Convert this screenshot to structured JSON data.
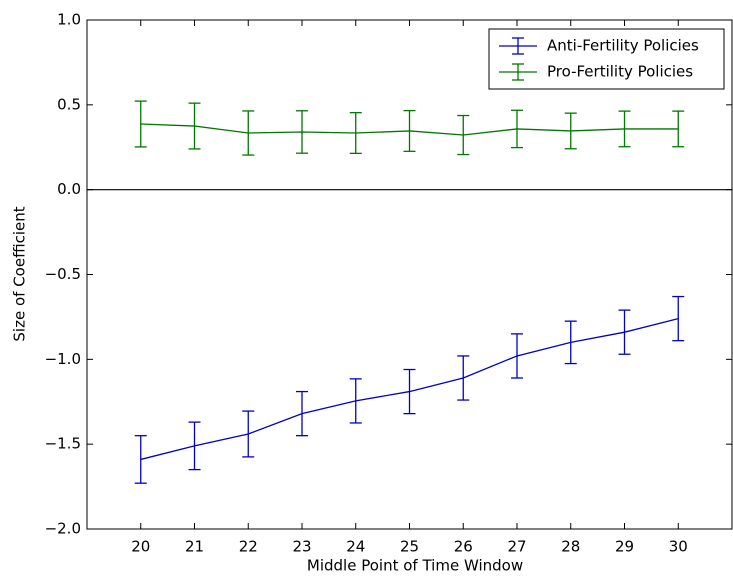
{
  "chart_data": {
    "type": "errorbar_line",
    "x_label": "Middle Point of Time Window",
    "y_label": "Size of Coefficient",
    "x": [
      20,
      21,
      22,
      23,
      24,
      25,
      26,
      27,
      28,
      29,
      30
    ],
    "series": [
      {
        "name": "Anti-Fertility Policies",
        "color": "#0000cc",
        "values": [
          -1.59,
          -1.51,
          -1.44,
          -1.32,
          -1.245,
          -1.19,
          -1.11,
          -0.98,
          -0.9,
          -0.84,
          -0.76
        ],
        "errors": [
          0.14,
          0.14,
          0.135,
          0.13,
          0.13,
          0.13,
          0.13,
          0.13,
          0.125,
          0.13,
          0.13
        ]
      },
      {
        "name": "Pro-Fertility Policies",
        "color": "#007700",
        "values": [
          0.387,
          0.375,
          0.334,
          0.34,
          0.334,
          0.346,
          0.322,
          0.358,
          0.346,
          0.358,
          0.358
        ],
        "errors": [
          0.135,
          0.135,
          0.13,
          0.125,
          0.12,
          0.12,
          0.115,
          0.11,
          0.105,
          0.105,
          0.105
        ]
      }
    ],
    "hline": 0,
    "xlim": [
      19,
      31
    ],
    "xticks": [
      20,
      21,
      22,
      23,
      24,
      25,
      26,
      27,
      28,
      29,
      30
    ],
    "ylim": [
      -2.0,
      1.0
    ],
    "yticks": [
      {
        "value": -2.0,
        "label": "−2.0"
      },
      {
        "value": -1.5,
        "label": "−1.5"
      },
      {
        "value": -1.0,
        "label": "−1.0"
      },
      {
        "value": -0.5,
        "label": "−0.5"
      },
      {
        "value": 0.0,
        "label": "0.0"
      },
      {
        "value": 0.5,
        "label": "0.5"
      },
      {
        "value": 1.0,
        "label": "1.0"
      }
    ],
    "legend": "upper right"
  }
}
